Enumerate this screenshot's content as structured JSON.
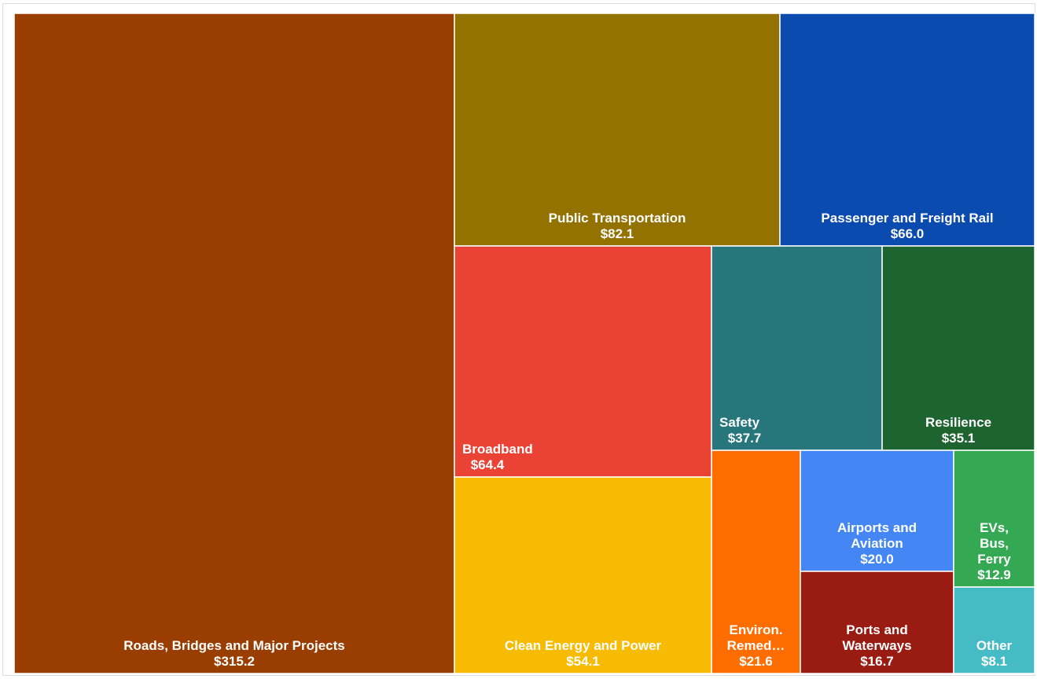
{
  "chart_data": {
    "type": "treemap",
    "units": "$",
    "items": [
      {
        "name": "Roads, Bridges and Major Projects",
        "label_lines": [
          "Roads, Bridges and Major Projects"
        ],
        "value": 315.2,
        "value_label": "$315.2",
        "color": "#993D00",
        "align": "bottom-center"
      },
      {
        "name": "Public Transportation",
        "label_lines": [
          "Public Transportation"
        ],
        "value": 82.1,
        "value_label": "$82.1",
        "color": "#947200",
        "align": "bottom-center"
      },
      {
        "name": "Passenger and Freight Rail",
        "label_lines": [
          "Passenger and Freight Rail"
        ],
        "value": 66.0,
        "value_label": "$66.0",
        "color": "#0B4BAF",
        "align": "bottom-center"
      },
      {
        "name": "Broadband",
        "label_lines": [
          "Broadband"
        ],
        "value": 64.4,
        "value_label": "$64.4",
        "color": "#EA4335",
        "align": "bottom-left"
      },
      {
        "name": "Safety",
        "label_lines": [
          "Safety"
        ],
        "value": 37.7,
        "value_label": "$37.7",
        "color": "#26767B",
        "align": "bottom-left"
      },
      {
        "name": "Resilience",
        "label_lines": [
          "Resilience"
        ],
        "value": 35.1,
        "value_label": "$35.1",
        "color": "#1E6430",
        "align": "bottom-center"
      },
      {
        "name": "Clean Energy and Power",
        "label_lines": [
          "Clean Energy and Power"
        ],
        "value": 54.1,
        "value_label": "$54.1",
        "color": "#F8BB03",
        "align": "bottom-center"
      },
      {
        "name": "Environ. Remed…",
        "label_lines": [
          "Environ.",
          "Remed…"
        ],
        "value": 21.6,
        "value_label": "$21.6",
        "color": "#FF6D01",
        "align": "bottom-center"
      },
      {
        "name": "Airports and Aviation",
        "label_lines": [
          "Airports and",
          "Aviation"
        ],
        "value": 20.0,
        "value_label": "$20.0",
        "color": "#4487F4",
        "align": "bottom-center"
      },
      {
        "name": "Ports and Waterways",
        "label_lines": [
          "Ports and",
          "Waterways"
        ],
        "value": 16.7,
        "value_label": "$16.7",
        "color": "#991B12",
        "align": "bottom-center"
      },
      {
        "name": "EVs, Bus, Ferry",
        "label_lines": [
          "EVs,",
          "Bus,",
          "Ferry"
        ],
        "value": 12.9,
        "value_label": "$12.9",
        "color": "#34A853",
        "align": "bottom-center"
      },
      {
        "name": "Other",
        "label_lines": [
          "Other"
        ],
        "value": 8.1,
        "value_label": "$8.1",
        "color": "#45BBC5",
        "align": "bottom-center"
      }
    ]
  }
}
